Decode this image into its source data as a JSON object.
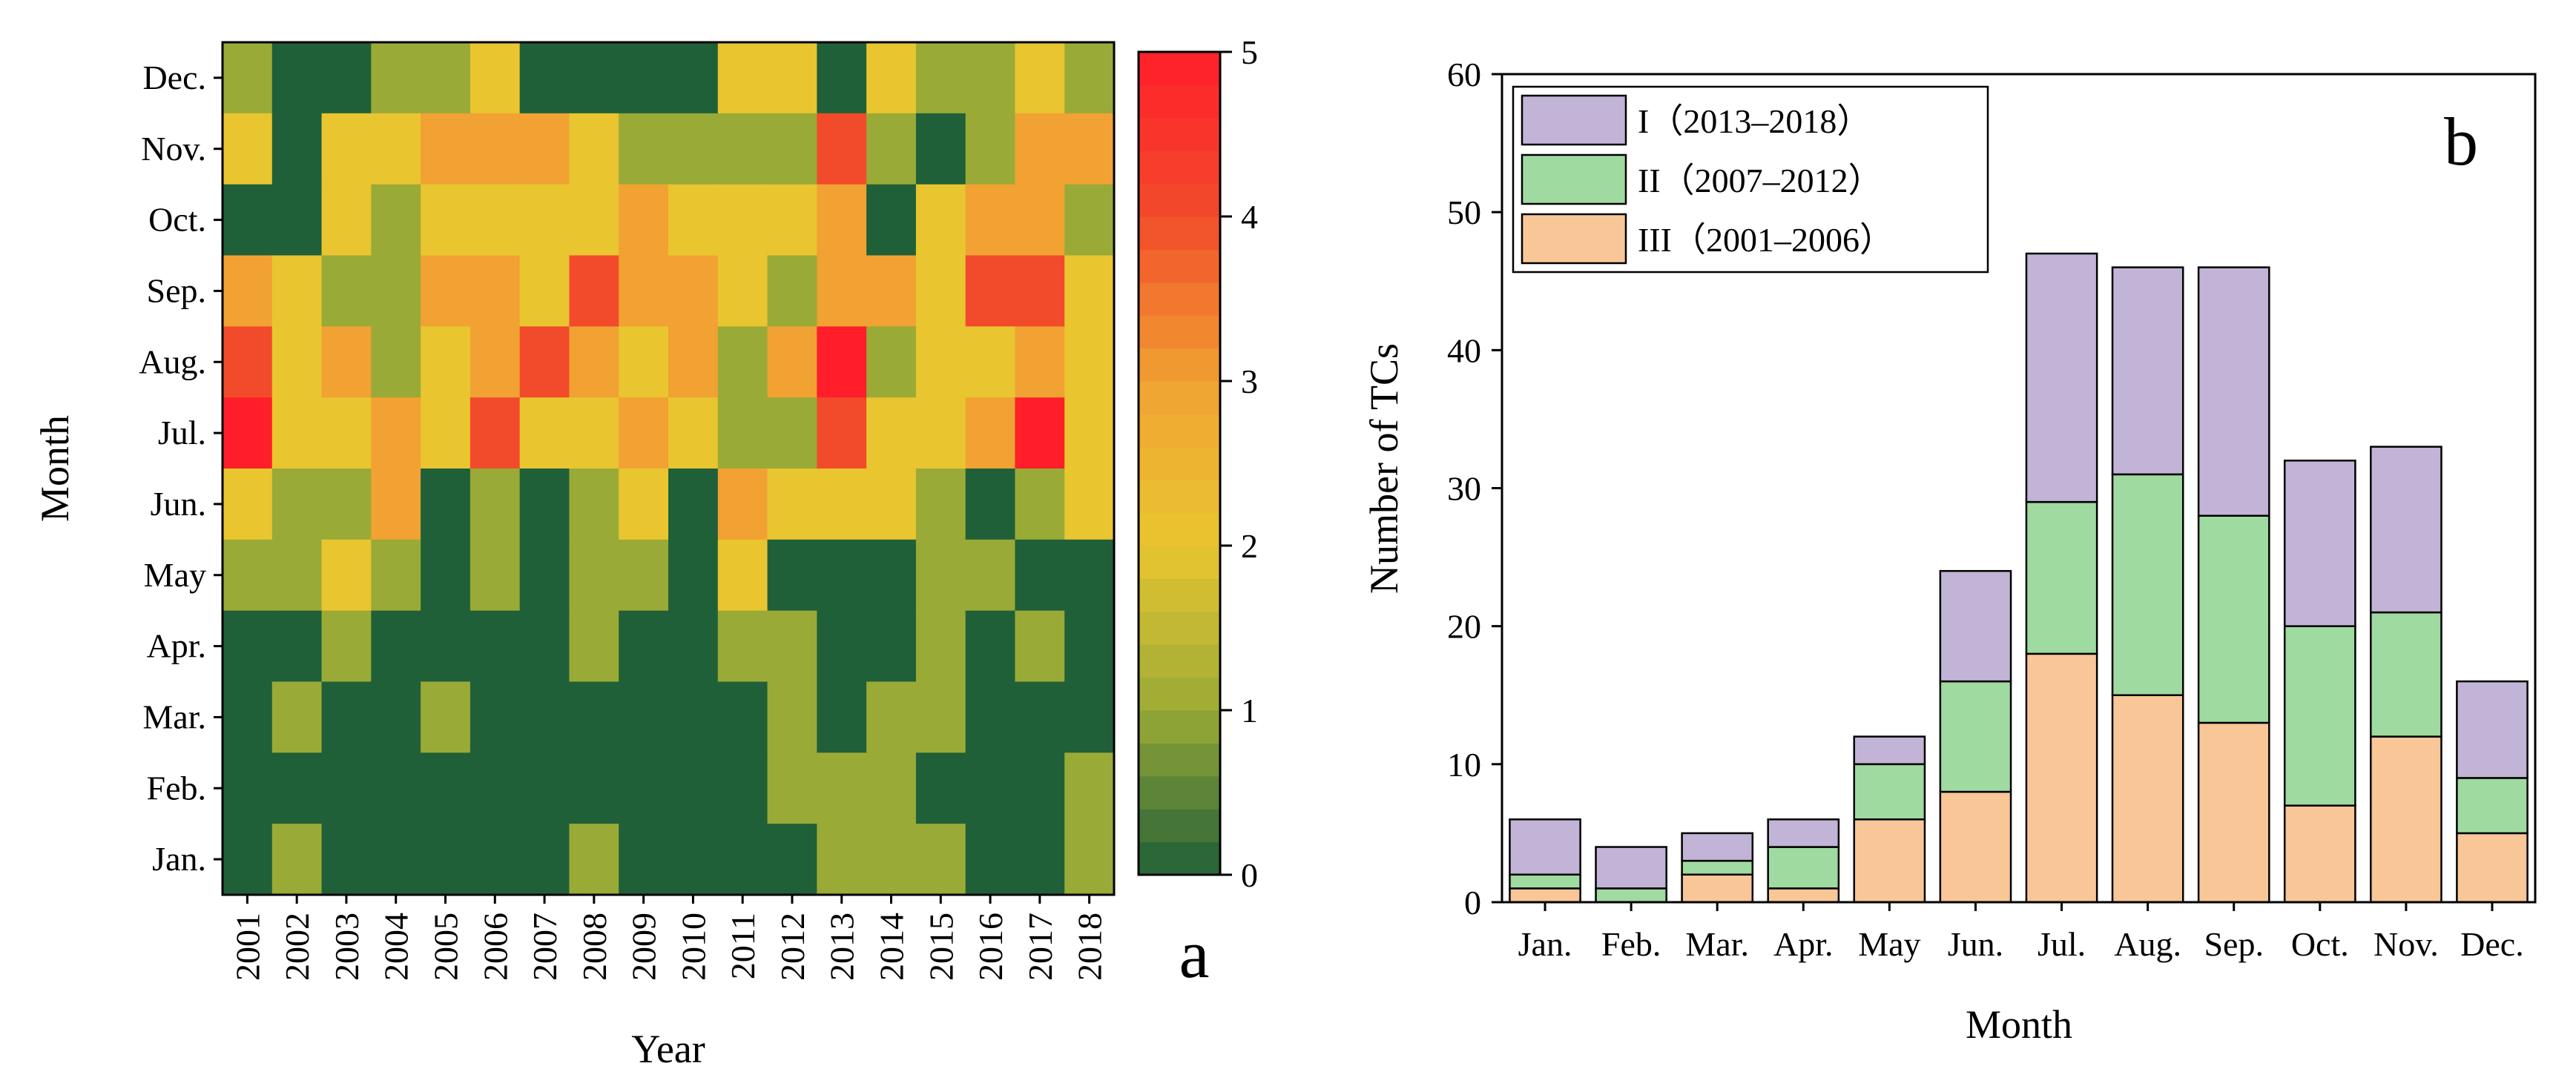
{
  "chart_data": [
    {
      "type": "heatmap",
      "panel_label": "a",
      "xlabel": "Year",
      "ylabel": "Month",
      "x_categories": [
        "2001",
        "2002",
        "2003",
        "2004",
        "2005",
        "2006",
        "2007",
        "2008",
        "2009",
        "2010",
        "2011",
        "2012",
        "2013",
        "2014",
        "2015",
        "2016",
        "2017",
        "2018"
      ],
      "y_categories": [
        "Dec.",
        "Nov.",
        "Oct.",
        "Sep.",
        "Aug.",
        "Jul.",
        "Jun.",
        "May",
        "Apr.",
        "Mar.",
        "Feb.",
        "Jan."
      ],
      "values": [
        [
          1,
          0,
          0,
          1,
          1,
          2,
          0,
          0,
          0,
          0,
          2,
          2,
          0,
          2,
          1,
          1,
          2,
          1
        ],
        [
          2,
          0,
          2,
          2,
          3,
          3,
          3,
          2,
          1,
          1,
          1,
          1,
          4,
          1,
          0,
          1,
          3,
          3
        ],
        [
          0,
          0,
          2,
          1,
          2,
          2,
          2,
          2,
          3,
          2,
          2,
          2,
          3,
          0,
          2,
          3,
          3,
          1
        ],
        [
          3,
          2,
          1,
          1,
          3,
          3,
          2,
          4,
          3,
          3,
          2,
          1,
          3,
          3,
          2,
          4,
          4,
          2
        ],
        [
          4,
          2,
          3,
          1,
          2,
          3,
          4,
          3,
          2,
          3,
          1,
          3,
          5,
          1,
          2,
          2,
          3,
          2
        ],
        [
          5,
          2,
          2,
          3,
          2,
          4,
          2,
          2,
          3,
          2,
          1,
          1,
          4,
          2,
          2,
          3,
          5,
          2
        ],
        [
          2,
          1,
          1,
          3,
          0,
          1,
          0,
          1,
          2,
          0,
          3,
          2,
          2,
          2,
          1,
          0,
          1,
          2
        ],
        [
          1,
          1,
          2,
          1,
          0,
          1,
          0,
          1,
          1,
          0,
          2,
          0,
          0,
          0,
          1,
          1,
          0,
          0
        ],
        [
          0,
          0,
          1,
          0,
          0,
          0,
          0,
          1,
          0,
          0,
          1,
          1,
          0,
          0,
          1,
          0,
          1,
          0
        ],
        [
          0,
          1,
          0,
          0,
          1,
          0,
          0,
          0,
          0,
          0,
          0,
          1,
          0,
          1,
          1,
          0,
          0,
          0
        ],
        [
          0,
          0,
          0,
          0,
          0,
          0,
          0,
          0,
          0,
          0,
          0,
          1,
          1,
          1,
          0,
          0,
          0,
          1
        ],
        [
          0,
          1,
          0,
          0,
          0,
          0,
          0,
          1,
          0,
          0,
          0,
          0,
          1,
          1,
          1,
          0,
          0,
          1
        ]
      ],
      "colorbar": {
        "range": [
          0,
          5
        ],
        "ticks": [
          "0",
          "1",
          "2",
          "3",
          "4",
          "5"
        ]
      },
      "colors": {
        "c0": "#206038",
        "c1": "#9aaa36",
        "c2": "#e9c530",
        "c3": "#f1a232",
        "c4": "#f24b2b",
        "c5": "#ff1e2a"
      }
    },
    {
      "type": "bar",
      "stacked": true,
      "panel_label": "b",
      "xlabel": "Month",
      "ylabel": "Number of TCs",
      "categories": [
        "Jan.",
        "Feb.",
        "Mar.",
        "Apr.",
        "May",
        "Jun.",
        "Jul.",
        "Aug.",
        "Sep.",
        "Oct.",
        "Nov.",
        "Dec."
      ],
      "ylim": [
        0,
        60
      ],
      "yticks": [
        "0",
        "10",
        "20",
        "30",
        "40",
        "50",
        "60"
      ],
      "legend_position": "top-left",
      "series": [
        {
          "name": "III（2001–2006）",
          "color": "#f9c698",
          "values": [
            1,
            0,
            2,
            1,
            6,
            8,
            18,
            15,
            13,
            7,
            12,
            5
          ]
        },
        {
          "name": "II（2007–2012）",
          "color": "#9fdaa0",
          "values": [
            1,
            1,
            1,
            3,
            4,
            8,
            11,
            16,
            15,
            13,
            9,
            4
          ]
        },
        {
          "name": "I（2013–2018）",
          "color": "#c2b4d6",
          "values": [
            4,
            3,
            2,
            2,
            2,
            8,
            18,
            15,
            18,
            12,
            12,
            7
          ]
        }
      ],
      "legend_order": [
        "I（2013–2018）",
        "II（2007–2012）",
        "III（2001–2006）"
      ]
    }
  ]
}
